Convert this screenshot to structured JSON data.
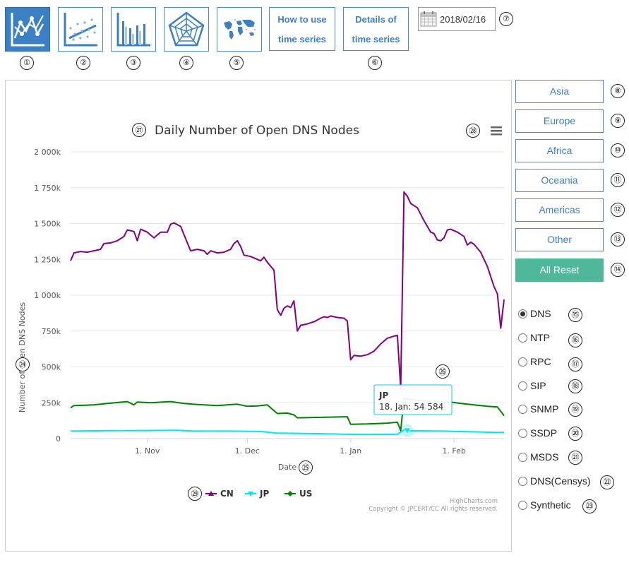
{
  "toolbar": {
    "tools": [
      {
        "name": "time-series-chart",
        "marker": "①",
        "active": true
      },
      {
        "name": "scatter-chart",
        "marker": "②",
        "active": false
      },
      {
        "name": "bar-chart",
        "marker": "③",
        "active": false
      },
      {
        "name": "radar-chart",
        "marker": "④",
        "active": false
      },
      {
        "name": "world-map",
        "marker": "⑤",
        "active": false
      }
    ],
    "how_to_use": {
      "line1": "How to use",
      "line2": "time series"
    },
    "details": {
      "line1": "Details of",
      "line2": "time series",
      "marker": "⑥"
    },
    "date": {
      "value": "2018/02/16",
      "marker": "⑦"
    }
  },
  "regions": [
    {
      "label": "Asia",
      "marker": "⑧"
    },
    {
      "label": "Europe",
      "marker": "⑨"
    },
    {
      "label": "Africa",
      "marker": "⑩"
    },
    {
      "label": "Oceania",
      "marker": "⑪"
    },
    {
      "label": "Americas",
      "marker": "⑫"
    },
    {
      "label": "Other",
      "marker": "⑬"
    }
  ],
  "reset": {
    "label": "All Reset",
    "marker": "⑭"
  },
  "protocols": [
    {
      "label": "DNS",
      "marker": "⑮",
      "selected": true
    },
    {
      "label": "NTP",
      "marker": "⑯",
      "selected": false
    },
    {
      "label": "RPC",
      "marker": "⑰",
      "selected": false
    },
    {
      "label": "SIP",
      "marker": "⑱",
      "selected": false
    },
    {
      "label": "SNMP",
      "marker": "⑲",
      "selected": false
    },
    {
      "label": "SSDP",
      "marker": "⑳",
      "selected": false
    },
    {
      "label": "MSDS",
      "marker": "㉑",
      "selected": false
    },
    {
      "label": "DNS(Censys)",
      "marker": "㉒",
      "selected": false
    },
    {
      "label": "Synthetic",
      "marker": "㉓",
      "selected": false
    }
  ],
  "chart_markers": {
    "ylabel": "㉔",
    "xlabel": "㉕",
    "tooltip": "㉖",
    "title": "㉗",
    "menu": "㉘",
    "legend": "㉙"
  },
  "credits": {
    "line1": "HighCharts.com",
    "line2": "Copyright © JPCERT/CC All rights reserved."
  },
  "tooltip": {
    "series": "JP",
    "text": "18. Jan: 54 584"
  },
  "colors": {
    "CN": "#800080",
    "JP": "#00e5ee",
    "US": "#008000",
    "accent": "#3b7fc4",
    "reset": "#4fb89a"
  },
  "chart_data": {
    "type": "line",
    "title": "Daily Number of Open DNS Nodes",
    "xlabel": "Date",
    "ylabel": "Number of Open DNS Nodes",
    "ylim": [
      0,
      2000000
    ],
    "yticks": [
      0,
      250000,
      500000,
      750000,
      1000000,
      1250000,
      1500000,
      1750000,
      2000000
    ],
    "ytick_labels": [
      "0",
      "250k",
      "500k",
      "750k",
      "1 000k",
      "1 250k",
      "1 500k",
      "1 750k",
      "2 000k"
    ],
    "xrange": [
      "2017-10-09",
      "2018-02-16"
    ],
    "xticks": [
      "2017-11-01",
      "2017-12-01",
      "2018-01-01",
      "2018-02-01"
    ],
    "xtick_labels": [
      "1. Nov",
      "1. Dec",
      "1. Jan",
      "1. Feb"
    ],
    "legend_position": "bottom-center",
    "grid": true,
    "series": [
      {
        "name": "CN",
        "color": "#800080",
        "points": [
          [
            "2017-10-09",
            1240000
          ],
          [
            "2017-10-10",
            1295000
          ],
          [
            "2017-10-12",
            1305000
          ],
          [
            "2017-10-14",
            1300000
          ],
          [
            "2017-10-16",
            1310000
          ],
          [
            "2017-10-18",
            1320000
          ],
          [
            "2017-10-19",
            1360000
          ],
          [
            "2017-10-21",
            1365000
          ],
          [
            "2017-10-23",
            1380000
          ],
          [
            "2017-10-25",
            1410000
          ],
          [
            "2017-10-26",
            1455000
          ],
          [
            "2017-10-28",
            1445000
          ],
          [
            "2017-10-29",
            1380000
          ],
          [
            "2017-10-30",
            1460000
          ],
          [
            "2017-11-01",
            1440000
          ],
          [
            "2017-11-03",
            1400000
          ],
          [
            "2017-11-05",
            1440000
          ],
          [
            "2017-11-07",
            1440000
          ],
          [
            "2017-11-08",
            1495000
          ],
          [
            "2017-11-09",
            1505000
          ],
          [
            "2017-11-11",
            1480000
          ],
          [
            "2017-11-14",
            1310000
          ],
          [
            "2017-11-16",
            1320000
          ],
          [
            "2017-11-18",
            1310000
          ],
          [
            "2017-11-19",
            1285000
          ],
          [
            "2017-11-20",
            1310000
          ],
          [
            "2017-11-22",
            1295000
          ],
          [
            "2017-11-24",
            1300000
          ],
          [
            "2017-11-26",
            1320000
          ],
          [
            "2017-11-27",
            1360000
          ],
          [
            "2017-11-28",
            1380000
          ],
          [
            "2017-11-29",
            1340000
          ],
          [
            "2017-11-30",
            1280000
          ],
          [
            "2017-12-02",
            1270000
          ],
          [
            "2017-12-03",
            1260000
          ],
          [
            "2017-12-05",
            1240000
          ],
          [
            "2017-12-06",
            1265000
          ],
          [
            "2017-12-07",
            1230000
          ],
          [
            "2017-12-09",
            1175000
          ],
          [
            "2017-12-10",
            900000
          ],
          [
            "2017-12-11",
            860000
          ],
          [
            "2017-12-12",
            910000
          ],
          [
            "2017-12-13",
            925000
          ],
          [
            "2017-12-14",
            915000
          ],
          [
            "2017-12-15",
            960000
          ],
          [
            "2017-12-16",
            750000
          ],
          [
            "2017-12-17",
            790000
          ],
          [
            "2017-12-19",
            800000
          ],
          [
            "2017-12-21",
            815000
          ],
          [
            "2017-12-23",
            840000
          ],
          [
            "2017-12-24",
            850000
          ],
          [
            "2017-12-25",
            845000
          ],
          [
            "2017-12-26",
            855000
          ],
          [
            "2017-12-28",
            845000
          ],
          [
            "2017-12-30",
            840000
          ],
          [
            "2017-12-31",
            820000
          ],
          [
            "2018-01-01",
            550000
          ],
          [
            "2018-01-02",
            580000
          ],
          [
            "2018-01-04",
            575000
          ],
          [
            "2018-01-06",
            585000
          ],
          [
            "2018-01-08",
            610000
          ],
          [
            "2018-01-10",
            660000
          ],
          [
            "2018-01-12",
            700000
          ],
          [
            "2018-01-14",
            715000
          ],
          [
            "2018-01-15",
            720000
          ],
          [
            "2018-01-16",
            350000
          ],
          [
            "2018-01-17",
            1720000
          ],
          [
            "2018-01-18",
            1690000
          ],
          [
            "2018-01-19",
            1640000
          ],
          [
            "2018-01-21",
            1610000
          ],
          [
            "2018-01-23",
            1520000
          ],
          [
            "2018-01-25",
            1440000
          ],
          [
            "2018-01-26",
            1430000
          ],
          [
            "2018-01-27",
            1385000
          ],
          [
            "2018-01-28",
            1380000
          ],
          [
            "2018-01-29",
            1400000
          ],
          [
            "2018-01-30",
            1455000
          ],
          [
            "2018-01-31",
            1460000
          ],
          [
            "2018-02-02",
            1440000
          ],
          [
            "2018-02-04",
            1410000
          ],
          [
            "2018-02-05",
            1350000
          ],
          [
            "2018-02-06",
            1370000
          ],
          [
            "2018-02-07",
            1355000
          ],
          [
            "2018-02-09",
            1300000
          ],
          [
            "2018-02-11",
            1200000
          ],
          [
            "2018-02-13",
            1060000
          ],
          [
            "2018-02-14",
            1010000
          ],
          [
            "2018-02-15",
            770000
          ],
          [
            "2018-02-16",
            970000
          ]
        ]
      },
      {
        "name": "JP",
        "color": "#00e5ee",
        "points": [
          [
            "2017-10-09",
            52000
          ],
          [
            "2017-10-20",
            55000
          ],
          [
            "2017-11-01",
            56000
          ],
          [
            "2017-11-10",
            58000
          ],
          [
            "2017-11-15",
            52000
          ],
          [
            "2017-11-25",
            52000
          ],
          [
            "2017-12-05",
            50000
          ],
          [
            "2017-12-10",
            38000
          ],
          [
            "2017-12-20",
            35000
          ],
          [
            "2017-12-31",
            30000
          ],
          [
            "2018-01-05",
            28000
          ],
          [
            "2018-01-15",
            30000
          ],
          [
            "2018-01-17",
            60000
          ],
          [
            "2018-01-18",
            54584
          ],
          [
            "2018-01-28",
            52000
          ],
          [
            "2018-02-05",
            48000
          ],
          [
            "2018-02-16",
            42000
          ]
        ]
      },
      {
        "name": "US",
        "color": "#008000",
        "points": [
          [
            "2017-10-09",
            215000
          ],
          [
            "2017-10-10",
            230000
          ],
          [
            "2017-10-16",
            235000
          ],
          [
            "2017-10-20",
            245000
          ],
          [
            "2017-10-26",
            258000
          ],
          [
            "2017-10-28",
            235000
          ],
          [
            "2017-10-29",
            255000
          ],
          [
            "2017-11-02",
            250000
          ],
          [
            "2017-11-08",
            258000
          ],
          [
            "2017-11-12",
            245000
          ],
          [
            "2017-11-16",
            238000
          ],
          [
            "2017-11-22",
            230000
          ],
          [
            "2017-11-28",
            240000
          ],
          [
            "2017-12-01",
            225000
          ],
          [
            "2017-12-04",
            228000
          ],
          [
            "2017-12-07",
            235000
          ],
          [
            "2017-12-10",
            175000
          ],
          [
            "2017-12-13",
            178000
          ],
          [
            "2017-12-15",
            165000
          ],
          [
            "2017-12-16",
            145000
          ],
          [
            "2017-12-22",
            148000
          ],
          [
            "2017-12-31",
            152000
          ],
          [
            "2018-01-01",
            100000
          ],
          [
            "2018-01-06",
            102000
          ],
          [
            "2018-01-12",
            108000
          ],
          [
            "2018-01-15",
            115000
          ],
          [
            "2018-01-16",
            55000
          ],
          [
            "2018-01-17",
            280000
          ],
          [
            "2018-01-20",
            270000
          ],
          [
            "2018-01-25",
            260000
          ],
          [
            "2018-01-31",
            255000
          ],
          [
            "2018-02-03",
            245000
          ],
          [
            "2018-02-07",
            235000
          ],
          [
            "2018-02-11",
            225000
          ],
          [
            "2018-02-14",
            220000
          ],
          [
            "2018-02-16",
            160000
          ]
        ]
      }
    ]
  }
}
